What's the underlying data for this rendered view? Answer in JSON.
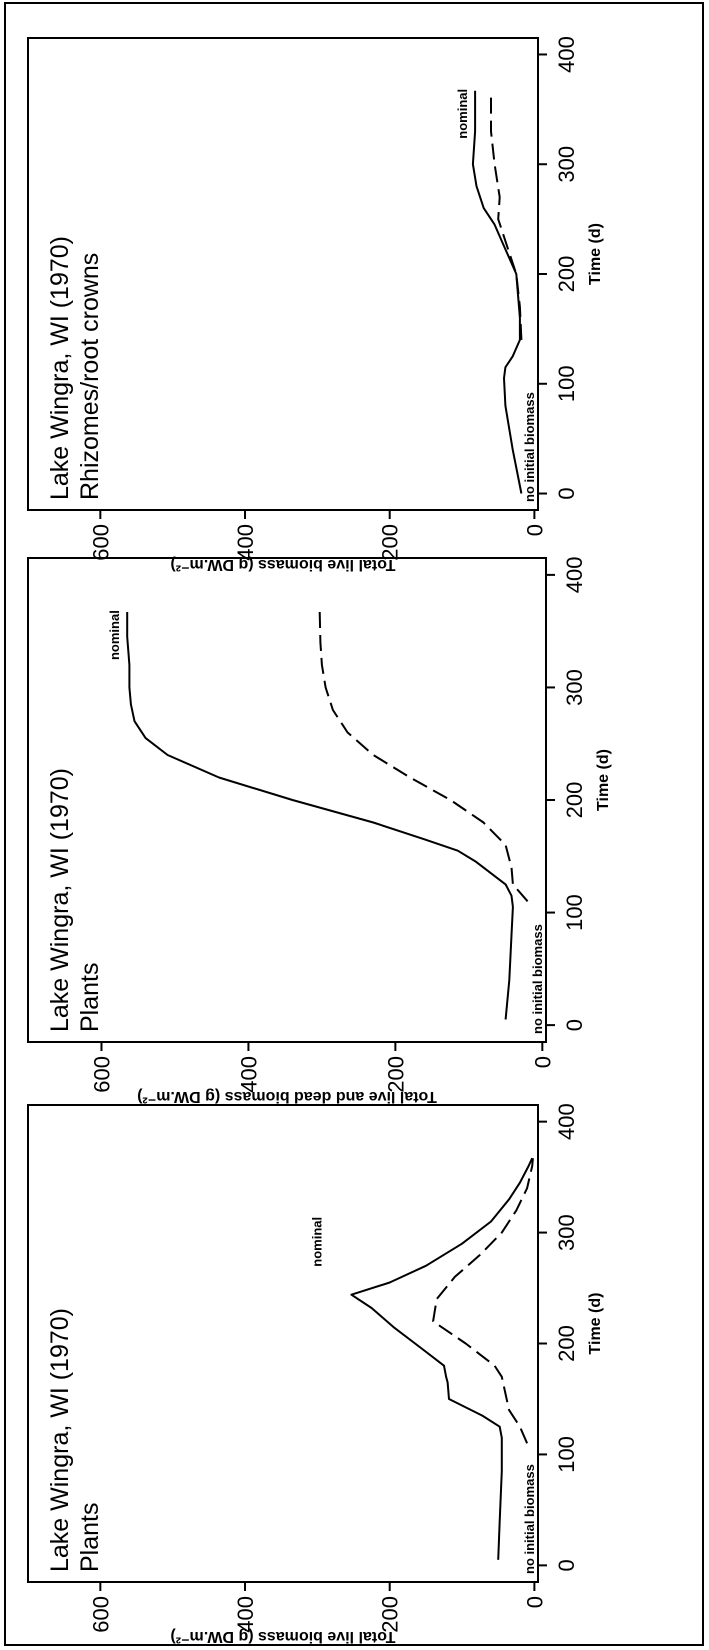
{
  "chart_data": [
    {
      "type": "line",
      "title": "Lake Wingra, WI (1970)",
      "subtitle": "Plants",
      "xlabel": "Time (d)",
      "ylabel": "Total live biomass (g DW.m⁻²)",
      "xlim": [
        -15,
        415
      ],
      "ylim": [
        -5,
        700
      ],
      "xticks": [
        0,
        100,
        200,
        300,
        400
      ],
      "yticks": [
        0,
        200,
        400,
        600
      ],
      "grid": false,
      "annotations": [
        "nominal",
        "no initial biomass"
      ],
      "series": [
        {
          "style": "solid",
          "x": [
            5,
            40,
            85,
            105,
            115,
            125,
            135,
            150,
            165,
            170,
            180,
            195,
            215,
            232,
            244,
            255,
            270,
            290,
            310,
            330,
            345,
            360,
            367
          ],
          "y": [
            50,
            48,
            45,
            45,
            45,
            48,
            72,
            118,
            120,
            122,
            125,
            155,
            195,
            225,
            253,
            200,
            150,
            100,
            60,
            35,
            20,
            8,
            3
          ]
        },
        {
          "style": "dashed",
          "x": [
            110,
            125,
            140,
            155,
            170,
            180,
            200,
            220,
            240,
            260,
            280,
            300,
            320,
            340,
            360,
            367
          ],
          "y": [
            10,
            20,
            35,
            40,
            45,
            55,
            95,
            140,
            135,
            110,
            75,
            45,
            25,
            10,
            3,
            2
          ]
        }
      ]
    },
    {
      "type": "line",
      "title": "Lake Wingra, WI (1970)",
      "subtitle": "Plants",
      "xlabel": "Time (d)",
      "ylabel": "Total live and dead biomass (g DW.m⁻²)",
      "xlim": [
        -15,
        415
      ],
      "ylim": [
        -5,
        700
      ],
      "xticks": [
        0,
        100,
        200,
        300,
        400
      ],
      "yticks": [
        0,
        200,
        400,
        600
      ],
      "grid": false,
      "annotations": [
        "nominal",
        "no initial biomass"
      ],
      "series": [
        {
          "style": "solid",
          "x": [
            5,
            40,
            80,
            105,
            115,
            125,
            135,
            145,
            155,
            165,
            180,
            200,
            220,
            240,
            255,
            270,
            285,
            300,
            320,
            345,
            367
          ],
          "y": [
            50,
            45,
            42,
            40,
            42,
            50,
            70,
            90,
            115,
            160,
            230,
            340,
            440,
            510,
            540,
            555,
            560,
            562,
            562,
            565,
            565
          ]
        },
        {
          "style": "dashed",
          "x": [
            110,
            125,
            140,
            160,
            180,
            200,
            220,
            240,
            260,
            280,
            300,
            320,
            340,
            367
          ],
          "y": [
            20,
            40,
            42,
            50,
            80,
            125,
            180,
            230,
            265,
            285,
            295,
            300,
            302,
            303
          ]
        }
      ]
    },
    {
      "type": "line",
      "title": "Lake Wingra, WI (1970)",
      "subtitle": "Rhizomes/root crowns",
      "xlabel": "Time (d)",
      "ylabel": "Total live biomass (g DW.m⁻²)",
      "xlim": [
        -15,
        415
      ],
      "ylim": [
        -5,
        700
      ],
      "xticks": [
        0,
        100,
        200,
        300,
        400
      ],
      "yticks": [
        0,
        200,
        400,
        600
      ],
      "grid": false,
      "annotations": [
        "nominal",
        "no initial biomass"
      ],
      "series": [
        {
          "style": "solid",
          "x": [
            0,
            40,
            80,
            105,
            115,
            125,
            140,
            160,
            200,
            230,
            245,
            260,
            280,
            300,
            330,
            360,
            367
          ],
          "y": [
            18,
            30,
            40,
            42,
            40,
            30,
            20,
            20,
            25,
            45,
            55,
            70,
            80,
            85,
            82,
            82,
            82
          ]
        },
        {
          "style": "dashed",
          "x": [
            140,
            170,
            200,
            230,
            250,
            270,
            300,
            330,
            367
          ],
          "y": [
            18,
            20,
            25,
            40,
            50,
            48,
            55,
            60,
            60
          ]
        }
      ]
    }
  ]
}
